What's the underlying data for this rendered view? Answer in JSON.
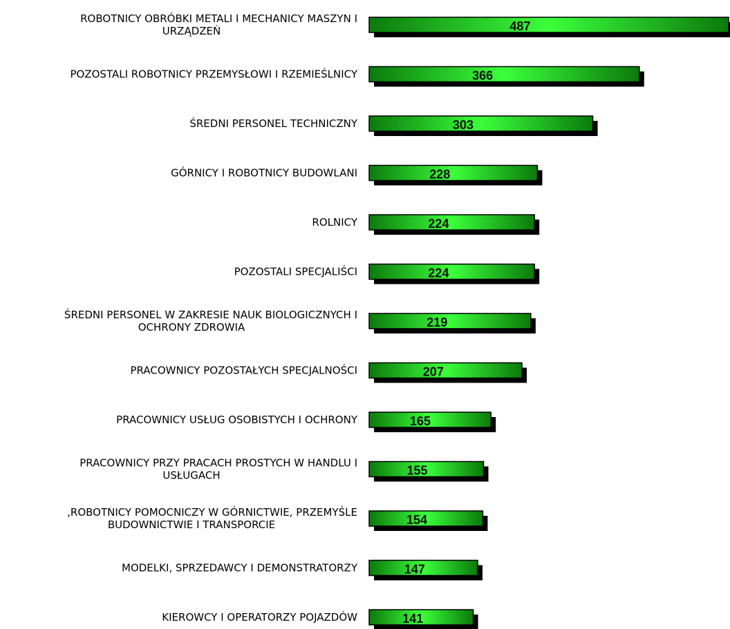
{
  "chart_data": {
    "type": "bar",
    "orientation": "horizontal",
    "title": "",
    "xlabel": "",
    "ylabel": "",
    "grid": false,
    "legend": "none",
    "colors": {
      "bar_dark": "#0b7a0b",
      "bar_light": "#3bff3b",
      "bar_outline": "#000000",
      "shadow": "#000000"
    },
    "categories": [
      [
        "ROBOTNICY OBRÓBKI METALI I MECHANICY MASZYN I",
        "URZĄDZEŃ"
      ],
      [
        "POZOSTALI ROBOTNICY PRZEMYSŁOWI I RZEMIEŚLNICY"
      ],
      [
        "ŚREDNI PERSONEL TECHNICZNY"
      ],
      [
        "GÓRNICY I ROBOTNICY BUDOWLANI"
      ],
      [
        "ROLNICY"
      ],
      [
        "POZOSTALI SPECJALIŚCI"
      ],
      [
        "ŚREDNI PERSONEL W ZAKRESIE NAUK BIOLOGICZNYCH I",
        "OCHRONY ZDROWIA"
      ],
      [
        "PRACOWNICY POZOSTAŁYCH SPECJALNOŚCI"
      ],
      [
        "PRACOWNICY USŁUG OSOBISTYCH I OCHRONY"
      ],
      [
        "PRACOWNICY PRZY PRACACH PROSTYCH W HANDLU I",
        "USŁUGACH"
      ],
      [
        ",ROBOTNICY POMOCNICZY W GÓRNICTWIE, PRZEMYŚLE",
        "BUDOWNICTWIE I TRANSPORCIE"
      ],
      [
        "MODELKI, SPRZEDAWCY I DEMONSTRATORZY"
      ],
      [
        "KIEROWCY I OPERATORZY POJAZDÓW"
      ]
    ],
    "values": [
      487,
      366,
      303,
      228,
      224,
      224,
      219,
      207,
      165,
      155,
      154,
      147,
      141
    ],
    "value_labels": [
      "487",
      "366",
      "303",
      "228",
      "224",
      "224",
      "219",
      "207",
      "165",
      "155",
      "154",
      "147",
      "141"
    ],
    "xlim": [
      0,
      487
    ]
  }
}
